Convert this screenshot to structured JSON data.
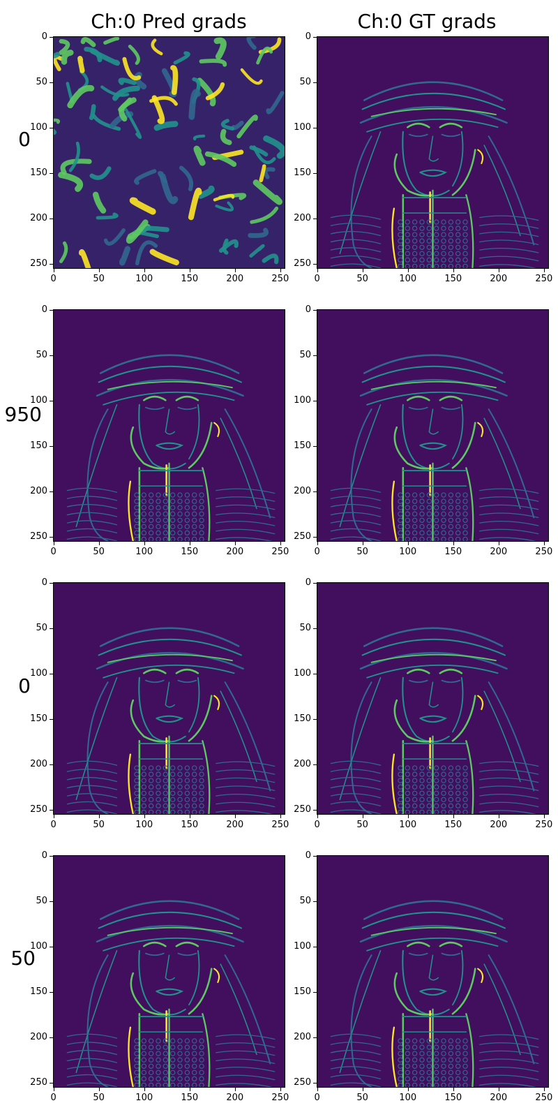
{
  "figure": {
    "column_titles": [
      "Ch:0 Pred grads",
      "Ch:0 GT grads"
    ],
    "row_labels": [
      "0",
      "950",
      "0",
      "50"
    ],
    "xticks": [
      "0",
      "50",
      "100",
      "150",
      "200",
      "250"
    ],
    "yticks": [
      "0",
      "50",
      "100",
      "150",
      "200",
      "250"
    ],
    "colormap": "viridis",
    "colors": {
      "background_dark": "#440154",
      "mid_blue": "#31688e",
      "teal": "#21918c",
      "green": "#5ec962",
      "yellow": "#fde725"
    },
    "panels": [
      {
        "row": 0,
        "col": 0,
        "content": "noise-gradient-field"
      },
      {
        "row": 0,
        "col": 1,
        "content": "portrait-edge-map"
      },
      {
        "row": 1,
        "col": 0,
        "content": "portrait-edge-map"
      },
      {
        "row": 1,
        "col": 1,
        "content": "portrait-edge-map"
      },
      {
        "row": 2,
        "col": 0,
        "content": "portrait-edge-map"
      },
      {
        "row": 2,
        "col": 1,
        "content": "portrait-edge-map"
      },
      {
        "row": 3,
        "col": 0,
        "content": "portrait-edge-map"
      },
      {
        "row": 3,
        "col": 1,
        "content": "portrait-edge-map"
      }
    ]
  }
}
